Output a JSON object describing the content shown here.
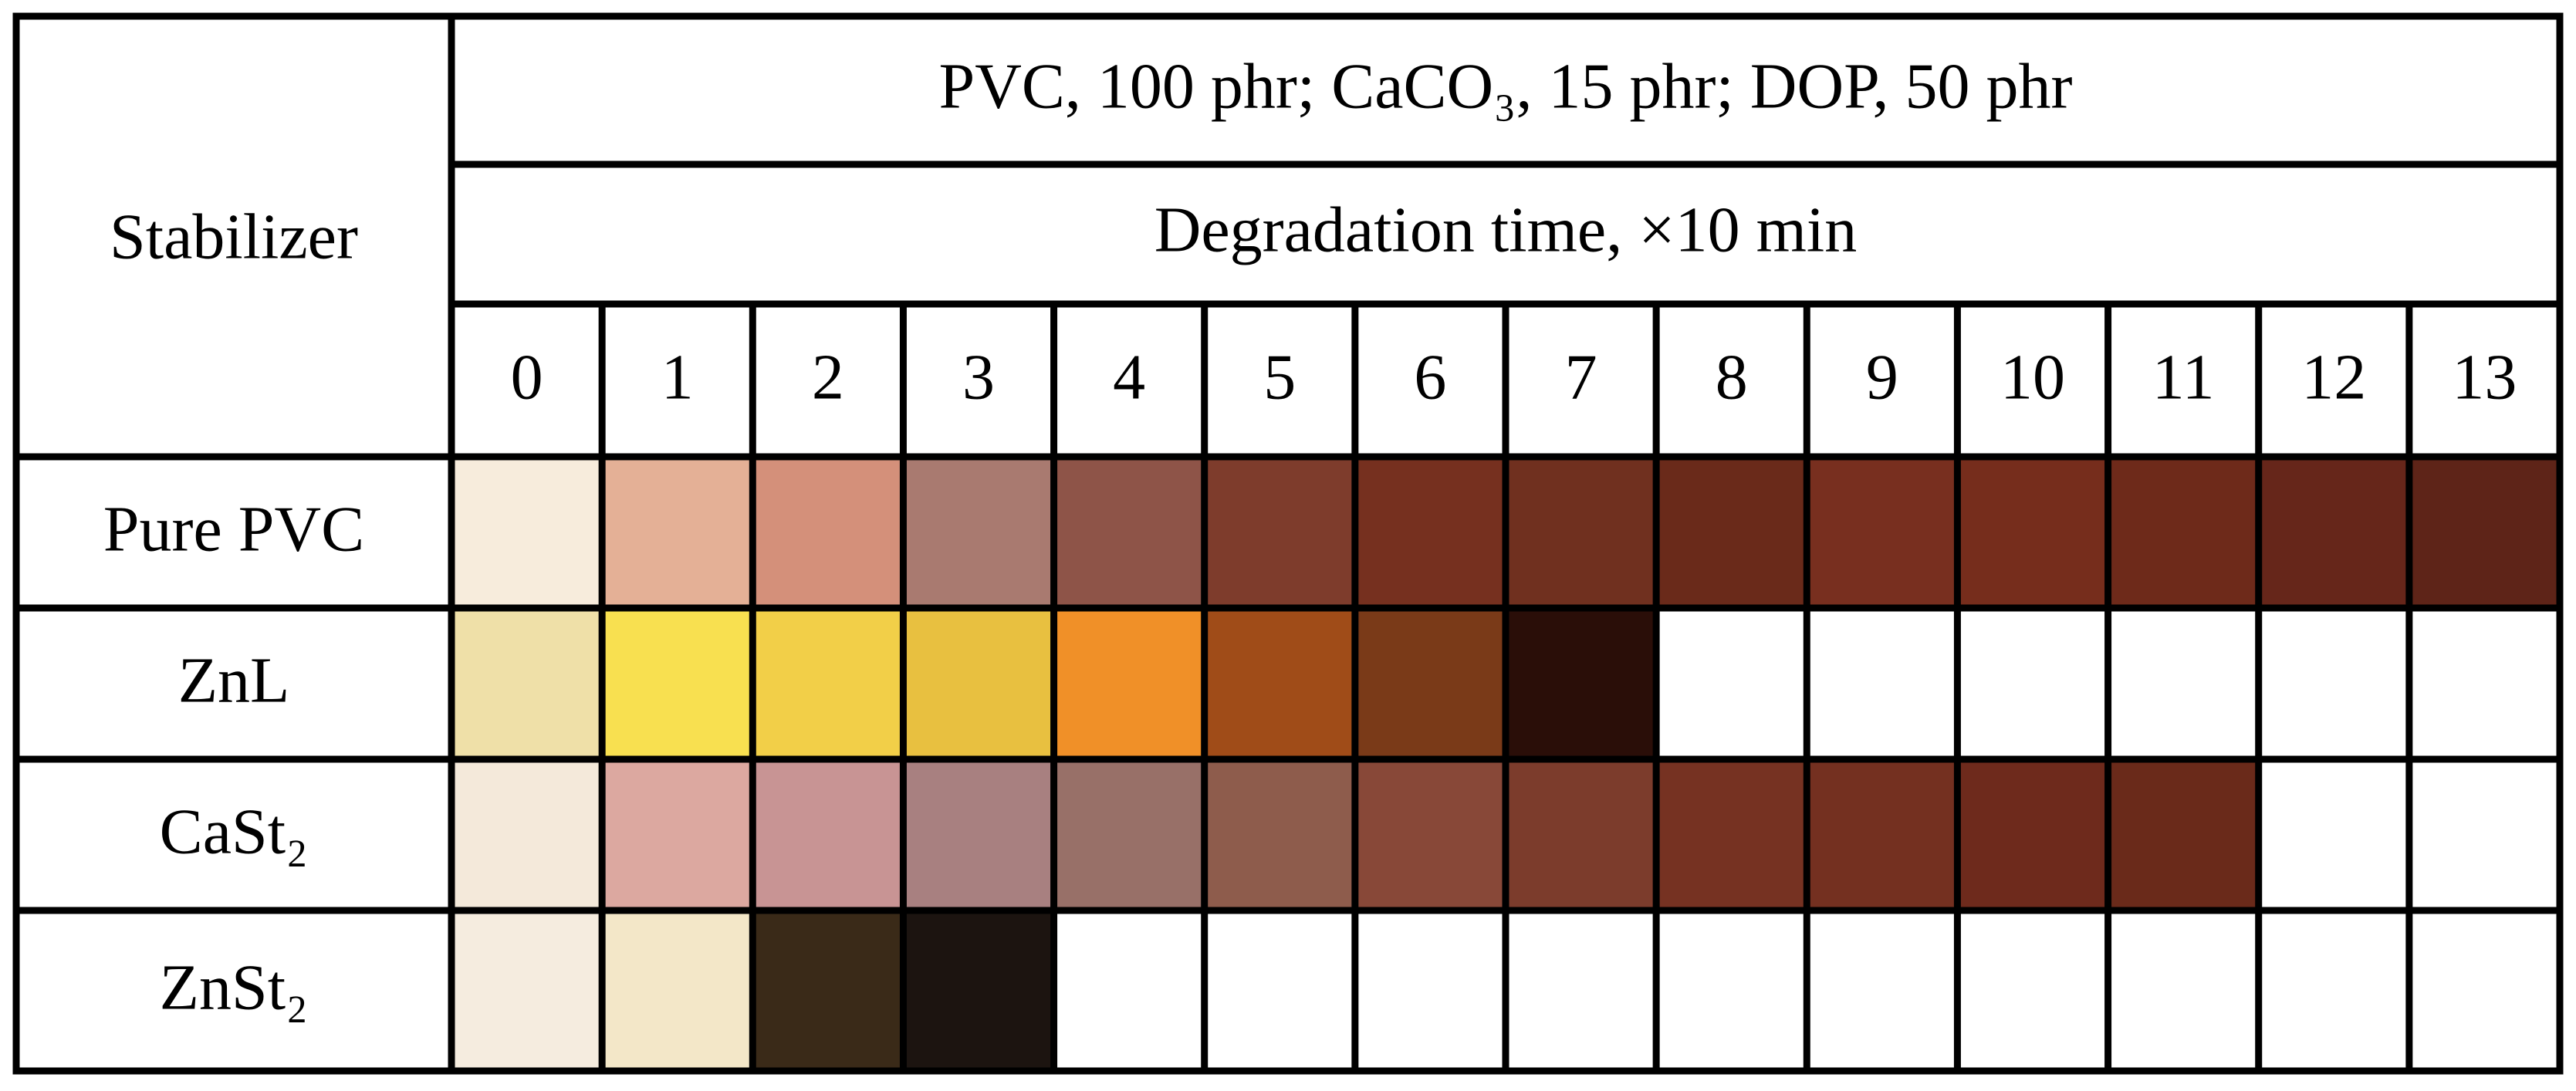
{
  "header": {
    "stabilizer": "Stabilizer",
    "formulation": "PVC, 100 phr; CaCO₃, 15 phr; DOP, 50 phr",
    "time_label": "Degradation time, ×10 min",
    "times": [
      0,
      1,
      2,
      3,
      4,
      5,
      6,
      7,
      8,
      9,
      10,
      11,
      12,
      13
    ]
  },
  "rows": [
    {
      "name": "Pure PVC",
      "colors": [
        "#f7ecdc",
        "#e4b096",
        "#d4907a",
        "#a97a70",
        "#8e5448",
        "#7e3c2c",
        "#76301f",
        "#70301f",
        "#6a2a1a",
        "#782f1f",
        "#762d1c",
        "#6e2a1a",
        "#66261a",
        "#5e2418"
      ]
    },
    {
      "name": "ZnL",
      "colors": [
        "#efe0a8",
        "#f8e050",
        "#f2cf48",
        "#e8c040",
        "#f09028",
        "#a04c18",
        "#7a3a18",
        "#2a0e08",
        null,
        null,
        null,
        null,
        null,
        null
      ]
    },
    {
      "name": "CaSt₂",
      "colors": [
        "#f4e9da",
        "#dca8a0",
        "#c89494",
        "#a88080",
        "#987068",
        "#8e5c4c",
        "#884838",
        "#7c3c2c",
        "#763222",
        "#743020",
        "#6e2a1c",
        "#6a2a1a",
        null,
        null
      ]
    },
    {
      "name": "ZnSt₂",
      "colors": [
        "#f5ecdf",
        "#f3e7c8",
        "#3a2a18",
        "#1c1410",
        null,
        null,
        null,
        null,
        null,
        null,
        null,
        null,
        null,
        null
      ]
    }
  ]
}
